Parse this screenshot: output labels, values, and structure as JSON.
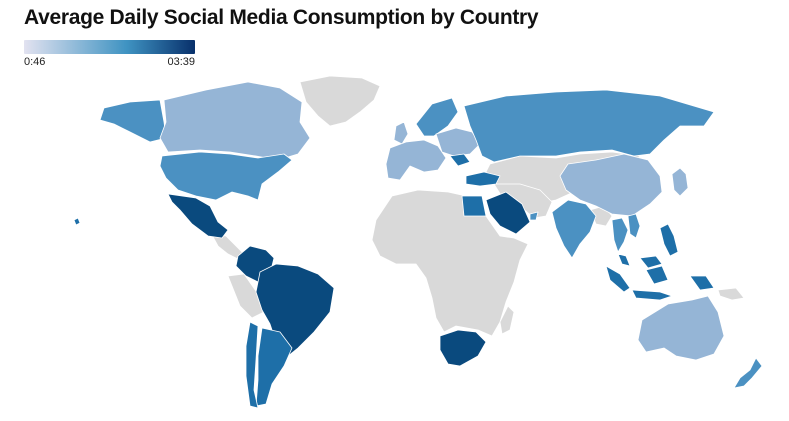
{
  "title": "Average Daily Social Media Consumption by Country",
  "legend": {
    "min_label": "0:46",
    "max_label": "03:39",
    "color_low": "#e2e2f0",
    "color_mid": "#3f93c2",
    "color_high": "#08306b"
  },
  "colors": {
    "no_data": "#d9d9d9",
    "level_light": "#95b5d6",
    "level_mid": "#4b91c2",
    "level_strong": "#1e6fa8",
    "level_dark": "#0a4a7e"
  },
  "countries": [
    {
      "key": "canada",
      "level": "light"
    },
    {
      "key": "usa",
      "level": "mid"
    },
    {
      "key": "alaska",
      "level": "mid"
    },
    {
      "key": "hawaii",
      "level": "strong"
    },
    {
      "key": "mexico",
      "level": "dark"
    },
    {
      "key": "colombia",
      "level": "dark"
    },
    {
      "key": "brazil",
      "level": "dark"
    },
    {
      "key": "argentina",
      "level": "strong"
    },
    {
      "key": "chile",
      "level": "strong"
    },
    {
      "key": "peru",
      "level": "no_data"
    },
    {
      "key": "uk",
      "level": "light"
    },
    {
      "key": "scandinavia",
      "level": "mid"
    },
    {
      "key": "western-europe",
      "level": "light"
    },
    {
      "key": "eastern-europe",
      "level": "light"
    },
    {
      "key": "romania",
      "level": "strong"
    },
    {
      "key": "russia",
      "level": "mid"
    },
    {
      "key": "turkey",
      "level": "strong"
    },
    {
      "key": "egypt",
      "level": "strong"
    },
    {
      "key": "saudi-arabia",
      "level": "dark"
    },
    {
      "key": "uae",
      "level": "mid"
    },
    {
      "key": "india",
      "level": "mid"
    },
    {
      "key": "china",
      "level": "light"
    },
    {
      "key": "japan",
      "level": "light"
    },
    {
      "key": "thailand",
      "level": "mid"
    },
    {
      "key": "vietnam",
      "level": "mid"
    },
    {
      "key": "philippines",
      "level": "strong"
    },
    {
      "key": "malaysia",
      "level": "strong"
    },
    {
      "key": "indonesia",
      "level": "strong"
    },
    {
      "key": "south-africa",
      "level": "dark"
    },
    {
      "key": "australia",
      "level": "light"
    },
    {
      "key": "new-zealand",
      "level": "mid"
    }
  ]
}
